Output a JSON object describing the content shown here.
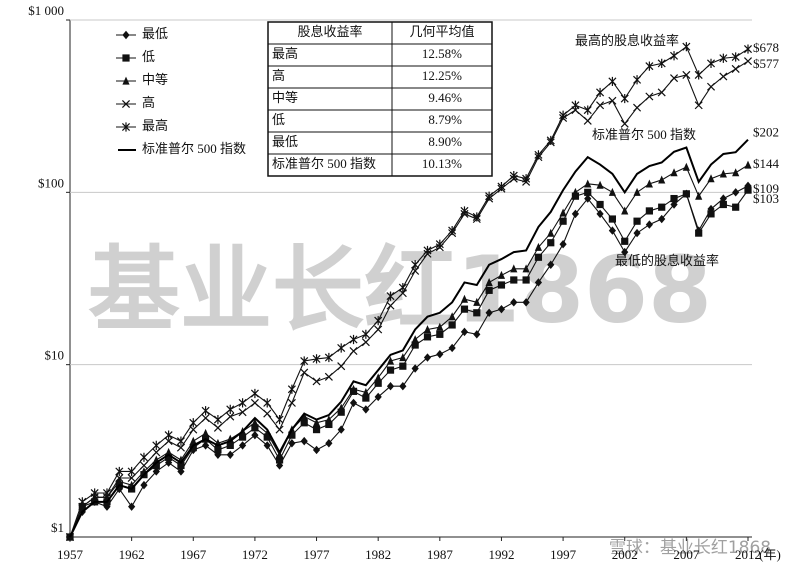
{
  "chart_data": {
    "type": "line",
    "x_label": "(年)",
    "x": [
      1957,
      1958,
      1959,
      1960,
      1961,
      1962,
      1963,
      1964,
      1965,
      1966,
      1967,
      1968,
      1969,
      1970,
      1971,
      1972,
      1973,
      1974,
      1975,
      1976,
      1977,
      1978,
      1979,
      1980,
      1981,
      1982,
      1983,
      1984,
      1985,
      1986,
      1987,
      1988,
      1989,
      1990,
      1991,
      1992,
      1993,
      1994,
      1995,
      1996,
      1997,
      1998,
      1999,
      2000,
      2001,
      2002,
      2003,
      2004,
      2005,
      2006,
      2007,
      2008,
      2009,
      2010,
      2011,
      2012
    ],
    "xlim": [
      1957,
      2012
    ],
    "xticks": [
      1957,
      1962,
      1967,
      1972,
      1977,
      1982,
      1987,
      1992,
      1997,
      2002,
      2007,
      2012
    ],
    "ylim": [
      1,
      1000
    ],
    "yscale": "log",
    "yticks": [
      {
        "value": 1,
        "label": "$1"
      },
      {
        "value": 10,
        "label": "$10"
      },
      {
        "value": 100,
        "label": "$100"
      },
      {
        "value": 1000,
        "label": "$1 000"
      }
    ],
    "grid": true,
    "series": [
      {
        "name": "最低",
        "marker": "diamond",
        "color": "#111111",
        "end_label": "$109",
        "values": [
          1,
          1.4,
          1.6,
          1.5,
          1.9,
          1.5,
          2.0,
          2.4,
          2.7,
          2.4,
          3.2,
          3.4,
          3.0,
          3.0,
          3.4,
          3.9,
          3.4,
          2.6,
          3.5,
          3.6,
          3.2,
          3.5,
          4.2,
          6.0,
          5.5,
          6.5,
          7.5,
          7.5,
          9.5,
          11,
          11.5,
          12.5,
          15.5,
          15,
          20,
          21,
          23,
          23,
          30,
          38,
          50,
          75,
          92,
          75,
          60,
          45,
          58,
          65,
          70,
          85,
          98,
          60,
          80,
          92,
          100,
          109
        ]
      },
      {
        "name": "低",
        "marker": "square",
        "color": "#111111",
        "end_label": "$103",
        "values": [
          1,
          1.5,
          1.6,
          1.6,
          2.0,
          1.9,
          2.3,
          2.6,
          2.9,
          2.6,
          3.3,
          3.7,
          3.2,
          3.4,
          3.8,
          4.3,
          3.8,
          2.8,
          3.9,
          4.6,
          4.2,
          4.5,
          5.3,
          7.0,
          6.4,
          7.8,
          9.3,
          9.8,
          13,
          14.5,
          15,
          17,
          21,
          20,
          27,
          29,
          31,
          31,
          42,
          51,
          68,
          95,
          100,
          85,
          70,
          52,
          68,
          78,
          82,
          92,
          98,
          58,
          75,
          85,
          82,
          103
        ]
      },
      {
        "name": "中等",
        "marker": "triangle",
        "color": "#111111",
        "end_label": "$144",
        "values": [
          1,
          1.5,
          1.7,
          1.7,
          2.1,
          2.0,
          2.4,
          2.8,
          3.1,
          2.8,
          3.6,
          4.0,
          3.5,
          3.7,
          4.1,
          4.6,
          4.0,
          3.0,
          4.2,
          5.0,
          4.6,
          4.8,
          5.6,
          7.2,
          6.9,
          8.4,
          10.5,
          11,
          14,
          16,
          16.5,
          19,
          24,
          23,
          30,
          33,
          36,
          36,
          48,
          58,
          76,
          100,
          112,
          110,
          100,
          78,
          100,
          112,
          118,
          130,
          140,
          95,
          120,
          128,
          130,
          144
        ]
      },
      {
        "name": "高",
        "marker": "cross",
        "color": "#111111",
        "end_label": "$577",
        "values": [
          1,
          1.5,
          1.7,
          1.7,
          2.2,
          2.2,
          2.6,
          3.1,
          3.6,
          3.3,
          4.2,
          4.9,
          4.3,
          5.0,
          5.3,
          6.0,
          5.2,
          4.2,
          6.0,
          9.0,
          8.0,
          8.5,
          9.8,
          12,
          13.5,
          16,
          22,
          26,
          35,
          44,
          48,
          58,
          75,
          70,
          92,
          105,
          120,
          115,
          160,
          195,
          270,
          300,
          260,
          320,
          340,
          250,
          310,
          360,
          380,
          460,
          480,
          320,
          410,
          470,
          520,
          577
        ]
      },
      {
        "name": "最高",
        "marker": "asterisk",
        "color": "#111111",
        "end_label": "$678",
        "values": [
          1,
          1.6,
          1.8,
          1.8,
          2.4,
          2.4,
          2.9,
          3.4,
          3.9,
          3.6,
          4.6,
          5.4,
          4.8,
          5.5,
          6.0,
          6.8,
          6.0,
          4.8,
          7.2,
          10.5,
          10.8,
          11,
          12.5,
          14,
          15,
          18,
          25,
          28,
          38,
          46,
          50,
          60,
          78,
          72,
          95,
          108,
          125,
          120,
          165,
          200,
          280,
          320,
          300,
          380,
          440,
          350,
          450,
          540,
          560,
          620,
          700,
          480,
          560,
          600,
          610,
          678
        ]
      },
      {
        "name": "标准普尔 500 指数",
        "marker": "none",
        "color": "#000000",
        "end_label": "$202",
        "values": [
          1,
          1.4,
          1.6,
          1.6,
          2.0,
          1.9,
          2.3,
          2.7,
          3.0,
          2.7,
          3.4,
          3.7,
          3.4,
          3.6,
          4.1,
          4.9,
          4.2,
          3.1,
          4.2,
          5.2,
          4.8,
          5.1,
          6.1,
          8.0,
          7.6,
          9.3,
          11.4,
          12.1,
          16,
          19,
          20,
          23,
          30,
          29,
          38,
          41,
          45,
          46,
          63,
          77,
          103,
          132,
          160,
          145,
          128,
          100,
          128,
          142,
          149,
          172,
          182,
          115,
          145,
          167,
          171,
          202
        ]
      }
    ],
    "annotations": [
      "最高的股息收益率",
      "标准普尔 500 指数",
      "最低的股息收益率"
    ],
    "table": {
      "header": [
        "股息收益率",
        "几何平均值"
      ],
      "rows": [
        [
          "最高",
          "12.58%"
        ],
        [
          "高",
          "12.25%"
        ],
        [
          "中等",
          "9.46%"
        ],
        [
          "低",
          "8.79%"
        ],
        [
          "最低",
          "8.90%"
        ],
        [
          "标准普尔 500 指数",
          "10.13%"
        ]
      ]
    },
    "watermark": "基业长红1868",
    "source_watermark": "雪球：基业长红1868"
  }
}
